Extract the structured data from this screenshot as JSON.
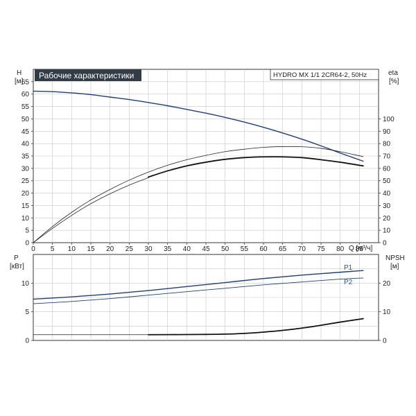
{
  "chart_data": [
    {
      "type": "line",
      "title": "Рабочие характеристики",
      "model_label": "HYDRO MX 1/1 2CR64-2, 50Hz",
      "xlabel": "Q [м³/ч]",
      "x_ticks": [
        "0",
        "5",
        "10",
        "15",
        "20",
        "25",
        "30",
        "35",
        "40",
        "45",
        "50",
        "55",
        "60",
        "65",
        "70",
        "75",
        "80",
        "85"
      ],
      "xlim": [
        0,
        90
      ],
      "left_axis": {
        "label_line1": "H",
        "label_line2": "[м]",
        "ylim": [
          0,
          70
        ],
        "ticks": [
          "0",
          "5",
          "10",
          "15",
          "20",
          "25",
          "30",
          "35",
          "40",
          "45",
          "50",
          "55",
          "60",
          "65"
        ]
      },
      "right_axis": {
        "label_line1": "eta",
        "label_line2": "[%]",
        "ylim": [
          0,
          140
        ],
        "ticks": [
          "0",
          "10",
          "20",
          "30",
          "40",
          "50",
          "60",
          "70",
          "80",
          "90",
          "100"
        ]
      },
      "grid": true,
      "series": [
        {
          "axis": "left",
          "color": "#1f3f73",
          "width": 1.4,
          "x": [
            0,
            5,
            10,
            15,
            20,
            25,
            30,
            35,
            40,
            45,
            50,
            55,
            60,
            65,
            70,
            75,
            80,
            86
          ],
          "y": [
            61.2,
            61.0,
            60.5,
            59.8,
            58.8,
            57.8,
            56.6,
            55.3,
            53.8,
            52.3,
            50.6,
            48.7,
            46.6,
            44.3,
            41.8,
            39.1,
            36.2,
            32.9
          ]
        },
        {
          "axis": "right",
          "color": "#1f3f73",
          "width": 1.4,
          "x": [
            0,
            5,
            10,
            15,
            20,
            25,
            30,
            35,
            40,
            45,
            50,
            55,
            60,
            65,
            70,
            75,
            80,
            86
          ],
          "y": [
            0,
            0,
            0,
            0,
            0,
            0,
            0,
            0,
            0,
            0,
            0,
            0,
            0,
            0,
            0,
            0,
            0,
            0
          ],
          "hidden": true
        },
        {
          "axis": "right",
          "color": "#222222",
          "width": 0.8,
          "x": [
            0,
            5,
            10,
            15,
            20,
            25,
            30,
            35,
            40,
            45,
            50,
            55,
            60,
            65,
            70,
            75,
            80,
            86
          ],
          "y": [
            0,
            13,
            24.5,
            34.5,
            43,
            50.5,
            57,
            62.5,
            67,
            70.5,
            73.5,
            75.5,
            77,
            77.6,
            77.5,
            76.2,
            73.5,
            69.5
          ]
        },
        {
          "axis": "right",
          "color": "#111111",
          "width": 1.8,
          "x": [
            30,
            35,
            40,
            45,
            50,
            55,
            60,
            65,
            70,
            75,
            80,
            86
          ],
          "y": [
            53,
            58,
            62,
            65,
            67.3,
            68.7,
            69.3,
            69.3,
            68.7,
            67,
            65,
            62
          ]
        },
        {
          "axis": "right",
          "color": "#222222",
          "width": 0.8,
          "x": [
            0,
            5,
            10,
            15,
            20,
            25,
            30
          ],
          "y": [
            0,
            11.5,
            22,
            31.5,
            39.5,
            46.5,
            52.5
          ]
        }
      ]
    },
    {
      "type": "line",
      "xlim": [
        0,
        90
      ],
      "left_axis": {
        "label_line1": "P",
        "label_line2": "[кВт]",
        "ylim": [
          0,
          15
        ],
        "ticks": [
          "0",
          "5",
          "10"
        ]
      },
      "right_axis": {
        "label_line1": "NPSH",
        "label_line2": "[м]",
        "ylim": [
          0,
          30
        ],
        "ticks": [
          "0",
          "10",
          "20"
        ]
      },
      "grid": true,
      "series": [
        {
          "name": "P1",
          "axis": "left",
          "color": "#1f3f73",
          "width": 1.4,
          "x": [
            0,
            10,
            20,
            30,
            40,
            50,
            60,
            70,
            80,
            86
          ],
          "y": [
            7.2,
            7.6,
            8.1,
            8.7,
            9.4,
            10.1,
            10.8,
            11.4,
            11.9,
            12.2
          ]
        },
        {
          "name": "P2",
          "axis": "left",
          "color": "#1f3f73",
          "width": 0.9,
          "x": [
            0,
            10,
            20,
            30,
            40,
            50,
            60,
            70,
            80,
            86
          ],
          "y": [
            6.4,
            6.8,
            7.3,
            7.9,
            8.5,
            9.1,
            9.7,
            10.2,
            10.7,
            10.9
          ]
        },
        {
          "axis": "right",
          "color": "#222222",
          "width": 0.8,
          "x": [
            0,
            30
          ],
          "y": [
            2.0,
            2.0
          ]
        },
        {
          "axis": "right",
          "color": "#111111",
          "width": 1.8,
          "x": [
            30,
            40,
            45,
            50,
            55,
            60,
            65,
            70,
            75,
            80,
            86
          ],
          "y": [
            2.0,
            2.05,
            2.1,
            2.2,
            2.45,
            2.9,
            3.5,
            4.3,
            5.3,
            6.4,
            7.6
          ]
        }
      ]
    }
  ]
}
